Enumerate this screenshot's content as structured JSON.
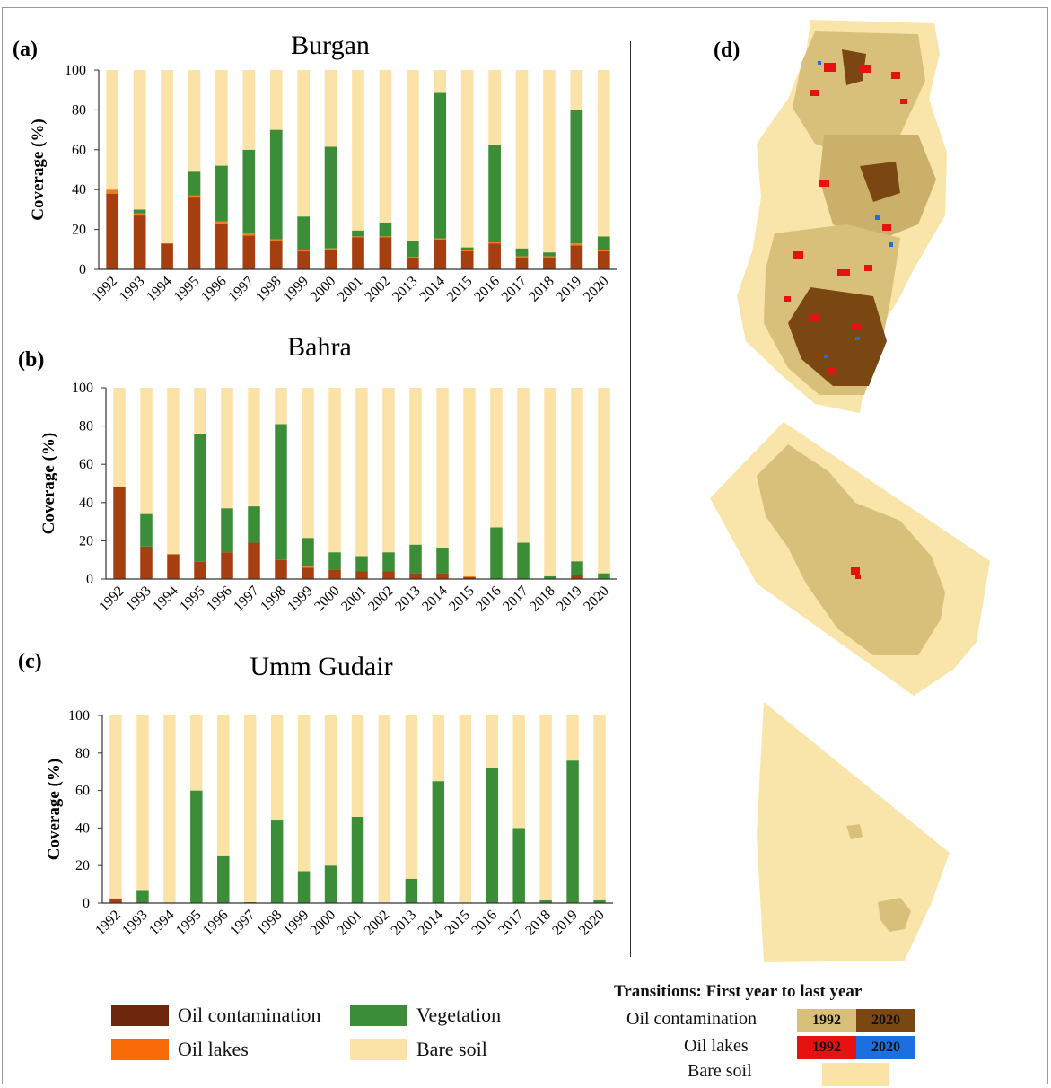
{
  "colors": {
    "oil_contamination": "#a53f10",
    "oil_lakes": "#f07e16",
    "vegetation": "#3b8d38",
    "bare_soil": "#fbe3a8",
    "legend_oil_contamination": "#6b260c",
    "legend_oil_lakes": "#f76a05",
    "map_field": "#d9c07a",
    "map_bg": "#f9e5aa",
    "map_2020_oil": "#7a4713",
    "map_1992_oil": "#e81111",
    "map_2020_lakes": "#1c6fe0"
  },
  "chart_data": [
    {
      "panel_label": "(a)",
      "type": "bar",
      "stacked": true,
      "title": "Burgan",
      "ylabel": "Coverage (%)",
      "xlabel": "",
      "ylim": [
        0,
        100
      ],
      "yticks": [
        0,
        20,
        40,
        60,
        80,
        100
      ],
      "categories": [
        "1992",
        "1993",
        "1994",
        "1995",
        "1996",
        "1997",
        "1998",
        "1999",
        "2000",
        "2001",
        "2002",
        "2013",
        "2014",
        "2015",
        "2016",
        "2017",
        "2018",
        "2019",
        "2020"
      ],
      "series": [
        {
          "name": "Oil contamination",
          "values": [
            38,
            27,
            13,
            36,
            23,
            17,
            14,
            9,
            10,
            16,
            16,
            6,
            15,
            9,
            13,
            6,
            6,
            12,
            9
          ]
        },
        {
          "name": "Oil lakes",
          "values": [
            2,
            1,
            0,
            1,
            1,
            1,
            1,
            0.5,
            0.5,
            0.5,
            0.5,
            0.3,
            0.5,
            0.5,
            0.5,
            0.5,
            0.5,
            1,
            0.5
          ]
        },
        {
          "name": "Vegetation",
          "values": [
            0,
            2,
            0,
            12,
            28,
            42,
            55,
            17,
            51,
            3,
            7,
            8,
            73,
            1.5,
            49,
            4,
            2,
            67,
            7
          ]
        },
        {
          "name": "Bare soil",
          "values": [
            60,
            70,
            87,
            51,
            48,
            40,
            30,
            73.5,
            38.5,
            80.5,
            76.5,
            85.7,
            11.5,
            89,
            37.5,
            89.5,
            91.5,
            20,
            83.5
          ]
        }
      ]
    },
    {
      "panel_label": "(b)",
      "type": "bar",
      "stacked": true,
      "title": "Bahra",
      "ylabel": "Coverage (%)",
      "xlabel": "",
      "ylim": [
        0,
        100
      ],
      "yticks": [
        0,
        20,
        40,
        60,
        80,
        100
      ],
      "categories": [
        "1992",
        "1993",
        "1994",
        "1995",
        "1996",
        "1997",
        "1998",
        "1999",
        "2000",
        "2001",
        "2002",
        "2013",
        "2014",
        "2015",
        "2016",
        "2017",
        "2018",
        "2019",
        "2020"
      ],
      "series": [
        {
          "name": "Oil contamination",
          "values": [
            48,
            17,
            13,
            9,
            14,
            19,
            10,
            6,
            5,
            4,
            4,
            3,
            3,
            1,
            0,
            0,
            0,
            2,
            0
          ]
        },
        {
          "name": "Oil lakes",
          "values": [
            0,
            0,
            0,
            0,
            0,
            0,
            0,
            0.5,
            0,
            0,
            0,
            0,
            0,
            0.5,
            0,
            0,
            0,
            0.3,
            0
          ]
        },
        {
          "name": "Vegetation",
          "values": [
            0,
            17,
            0,
            67,
            23,
            19,
            71,
            15,
            9,
            8,
            10,
            15,
            13,
            0,
            27,
            19,
            1.5,
            7,
            3
          ]
        },
        {
          "name": "Bare soil",
          "values": [
            52,
            66,
            87,
            24,
            63,
            62,
            19,
            78.5,
            86,
            88,
            86,
            82,
            84,
            98.5,
            73,
            81,
            98.5,
            90.7,
            97
          ]
        }
      ]
    },
    {
      "panel_label": "(c)",
      "type": "bar",
      "stacked": true,
      "title": "Umm Gudair",
      "ylabel": "Coverage (%)",
      "xlabel": "",
      "ylim": [
        0,
        100
      ],
      "yticks": [
        0,
        20,
        40,
        60,
        80,
        100
      ],
      "categories": [
        "1992",
        "1993",
        "1994",
        "1995",
        "1996",
        "1997",
        "1998",
        "1999",
        "2000",
        "2001",
        "2002",
        "2013",
        "2014",
        "2015",
        "2016",
        "2017",
        "2018",
        "2019",
        "2020"
      ],
      "series": [
        {
          "name": "Oil contamination",
          "values": [
            2.5,
            0,
            0,
            0,
            0,
            0,
            0,
            0,
            0,
            0,
            0,
            0,
            0,
            0,
            0,
            0,
            0,
            0,
            0
          ]
        },
        {
          "name": "Oil lakes",
          "values": [
            0,
            0,
            0,
            0,
            0,
            0,
            0,
            0,
            0,
            0,
            0,
            0,
            0,
            0,
            0,
            0,
            0,
            0,
            0
          ]
        },
        {
          "name": "Vegetation",
          "values": [
            0,
            7,
            0,
            60,
            25,
            0.5,
            44,
            17,
            20,
            46,
            0,
            13,
            65,
            0,
            72,
            40,
            1.5,
            76,
            1.5
          ]
        },
        {
          "name": "Bare soil",
          "values": [
            97.5,
            93,
            100,
            40,
            75,
            99.5,
            56,
            83,
            80,
            54,
            100,
            87,
            35,
            100,
            28,
            60,
            98.5,
            24,
            98.5
          ]
        }
      ]
    }
  ],
  "map_panel": {
    "label": "(d)"
  },
  "legend": {
    "oil_contamination": "Oil contamination",
    "oil_lakes": "Oil lakes",
    "vegetation": "Vegetation",
    "bare_soil": "Bare soil"
  },
  "transitions": {
    "title": "Transitions: First year to last year",
    "oil_contamination_label": "Oil contamination",
    "oil_lakes_label": "Oil lakes",
    "bare_soil_label": "Bare soil",
    "first_year": "1992",
    "last_year": "2020"
  }
}
